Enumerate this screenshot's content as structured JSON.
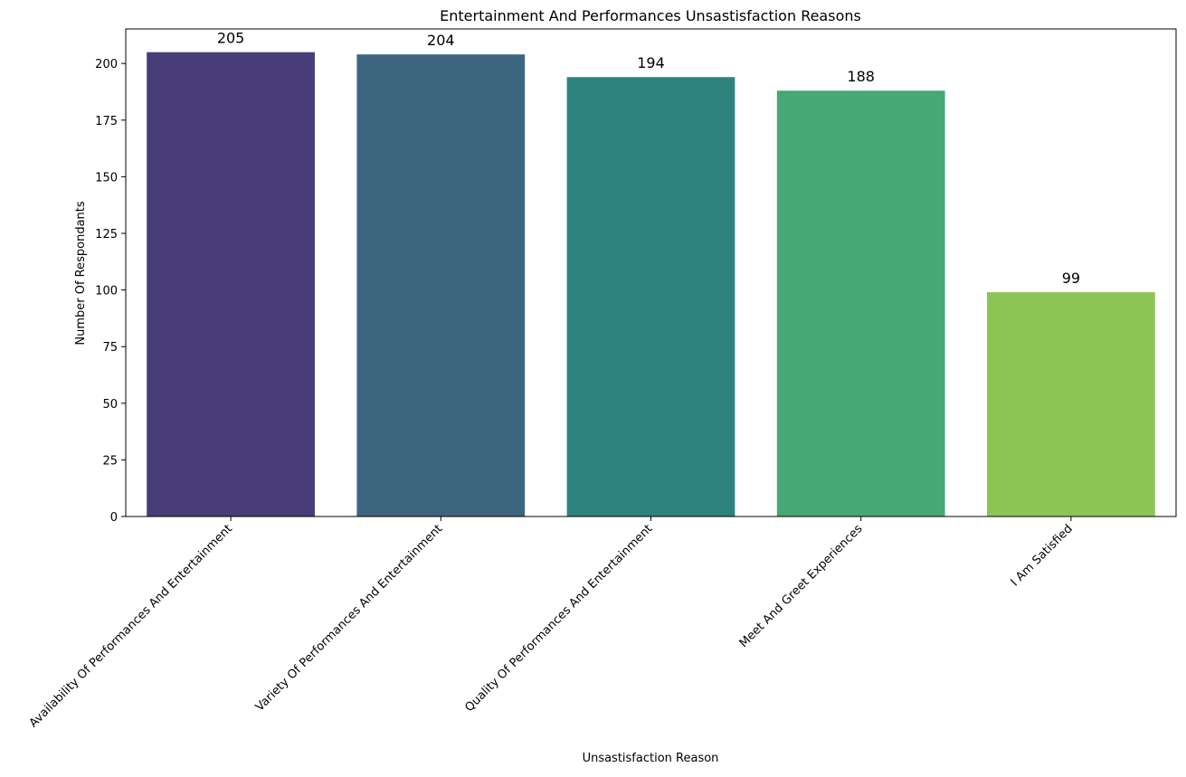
{
  "chart_data": {
    "type": "bar",
    "title": "Entertainment And Performances Unsastisfaction Reasons",
    "xlabel": "Unsastisfaction Reason",
    "ylabel": "Number Of Respondants",
    "categories": [
      "Availability Of Performances And Entertainment",
      "Variety Of Performances And Entertainment",
      "Quality Of Performances And Entertainment",
      "Meet And Greet Experiences",
      "I Am Satisfied"
    ],
    "values": [
      205,
      204,
      194,
      188,
      99
    ],
    "data_labels": [
      "205",
      "204",
      "194",
      "188",
      "99"
    ],
    "colors": [
      "#483d78",
      "#3e6580",
      "#2e837f",
      "#46a777",
      "#8dc555"
    ],
    "ylim": [
      0,
      215.25
    ],
    "yticks": [
      0,
      25,
      50,
      75,
      100,
      125,
      150,
      175,
      200
    ],
    "ytick_labels": [
      "0",
      "25",
      "50",
      "75",
      "100",
      "125",
      "150",
      "175",
      "200"
    ],
    "grid": false,
    "legend": "none"
  }
}
